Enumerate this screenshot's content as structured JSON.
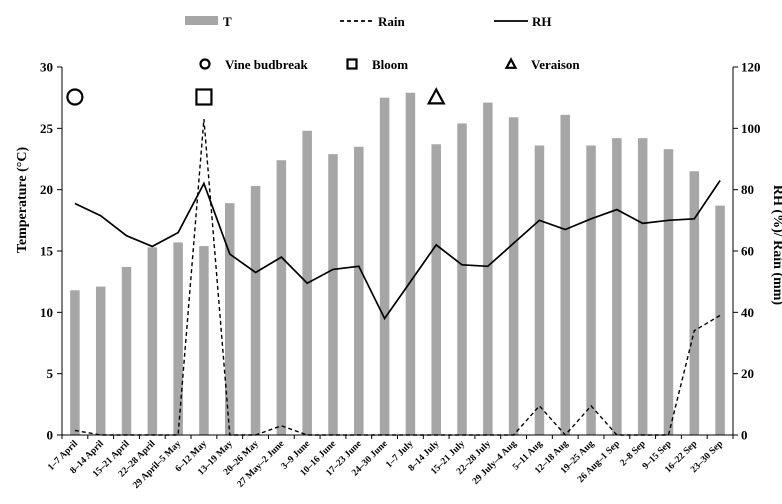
{
  "chart_data": {
    "type": "bar",
    "title": "",
    "xlabel": "",
    "ylabel": "Temperature (°C)",
    "y2label": "RH (%)/ Rain (mm)",
    "ylim": [
      0,
      30
    ],
    "y2lim": [
      0,
      120
    ],
    "yticks": [
      0,
      5,
      10,
      15,
      20,
      25,
      30
    ],
    "y2ticks": [
      0,
      20,
      40,
      60,
      80,
      100,
      120
    ],
    "grid": false,
    "legend_position": "top",
    "categories": [
      "1–7 April",
      "8–14 April",
      "15–21 April",
      "22–28 April",
      "29 April–5 May",
      "6–12 May",
      "13–19 May",
      "20–26 May",
      "27 May–2 June",
      "3–9 June",
      "10–16 June",
      "17–23 June",
      "24–30 June",
      "1–7 July",
      "8–14 July",
      "15–21 July",
      "22–28 July",
      "29 July–4 Aug",
      "5–11 Aug",
      "12–18 Aug",
      "19–25 Aug",
      "26 Aug–1 Sep",
      "2–8 Sep",
      "9–15 Sep",
      "16–22 Sep",
      "23–30 Sep"
    ],
    "series": [
      {
        "name": "T",
        "kind": "bar",
        "axis": "left",
        "color": "#a6a6a6",
        "values": [
          11.8,
          12.1,
          13.7,
          15.3,
          15.7,
          15.4,
          18.9,
          20.3,
          22.4,
          24.8,
          22.9,
          23.5,
          27.5,
          27.9,
          23.7,
          25.4,
          27.1,
          25.9,
          23.6,
          26.1,
          23.6,
          24.2,
          24.2,
          23.3,
          21.5,
          18.7
        ]
      },
      {
        "name": "Rain",
        "kind": "line",
        "axis": "right",
        "dash": "dashed",
        "color": "#000000",
        "values": [
          1.5,
          0,
          0,
          0,
          0,
          103,
          0,
          0,
          3,
          0,
          0,
          0,
          0,
          0,
          0,
          0,
          0,
          0,
          9.5,
          0,
          9.5,
          0,
          0,
          0,
          34,
          39
        ]
      },
      {
        "name": "RH",
        "kind": "line",
        "axis": "right",
        "dash": "solid",
        "color": "#000000",
        "values": [
          75.5,
          71.5,
          65,
          61.5,
          66,
          82,
          59,
          53,
          58,
          49.5,
          54,
          55,
          38,
          50,
          62,
          55.5,
          55,
          62.5,
          70,
          67,
          70.5,
          73.5,
          69,
          70,
          70.5,
          83
        ]
      }
    ],
    "phenology_legend": [
      {
        "label": "Vine budbreak",
        "symbol": "circle"
      },
      {
        "label": "Bloom",
        "symbol": "square"
      },
      {
        "label": "Veraison",
        "symbol": "triangle"
      }
    ],
    "phenology_markers": [
      {
        "symbol": "circle",
        "category": "1–7 April"
      },
      {
        "symbol": "square",
        "category": "6–12 May"
      },
      {
        "symbol": "triangle",
        "category": "8–14 July"
      }
    ]
  }
}
